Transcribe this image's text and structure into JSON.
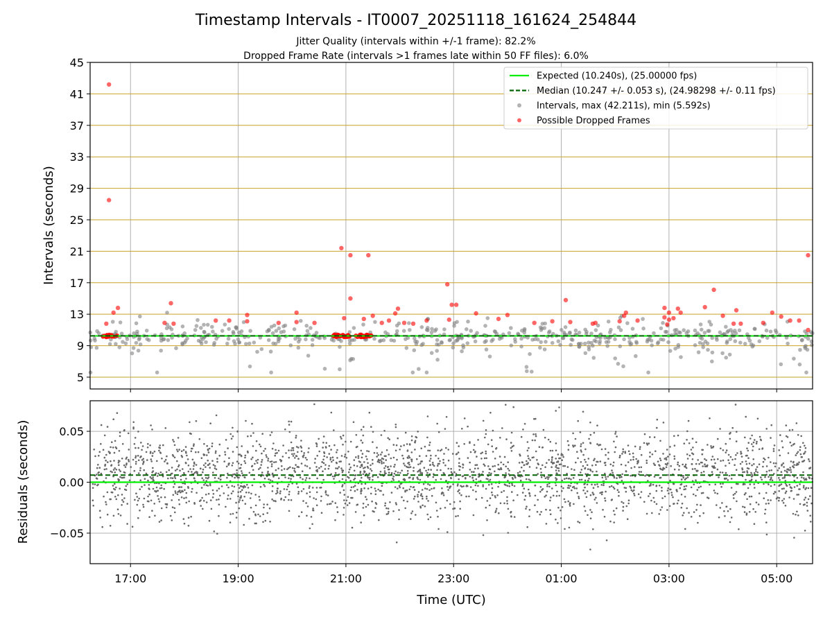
{
  "title": "Timestamp Intervals - IT0007_20251118_161624_254844",
  "subtitle_1": "Jitter Quality (intervals within +/-1 frame): 82.2%",
  "subtitle_2": "Dropped Frame Rate (intervals >1 frames late within 50 FF files): 6.0%",
  "colors": {
    "expected": "#00ee00",
    "median": "#006400",
    "intervals": "#808080",
    "dropped": "#ff0000",
    "hgrid_top": "#c9a227",
    "grid": "#b0b0b0"
  },
  "chart_data": [
    {
      "type": "scatter",
      "panel": "intervals",
      "ylabel": "Intervals (seconds)",
      "xlim": [
        "16:15",
        "05:40"
      ],
      "ylim": [
        3.5,
        45
      ],
      "yticks": [
        5,
        9,
        13,
        17,
        21,
        25,
        29,
        33,
        37,
        41,
        45
      ],
      "grid": "on",
      "legend_placement": "top-right",
      "legend": [
        {
          "kind": "line",
          "style": "solid",
          "color": "#00ee00",
          "label": "Expected (10.240s), (25.00000 fps)"
        },
        {
          "kind": "line",
          "style": "dashed",
          "color": "#006400",
          "label": "Median (10.247 +/- 0.053 s), (24.98298 +/- 0.11 fps)"
        },
        {
          "kind": "marker",
          "color": "#808080",
          "label": "Intervals, max (42.211s), min (5.592s)"
        },
        {
          "kind": "marker",
          "color": "#ff0000",
          "label": "Possible Dropped Frames"
        }
      ],
      "expected_interval": 10.24,
      "median_interval": 10.247,
      "series": [
        {
          "name": "Possible Dropped Frames",
          "points": [
            [
              "16:36",
              42.2
            ],
            [
              "16:36",
              27.5
            ],
            [
              "16:33",
              11.8
            ],
            [
              "16:41",
              13.2
            ],
            [
              "16:46",
              13.8
            ],
            [
              "17:45",
              14.4
            ],
            [
              "17:38",
              11.9
            ],
            [
              "17:48",
              11.8
            ],
            [
              "18:35",
              12.2
            ],
            [
              "18:50",
              12.2
            ],
            [
              "19:10",
              12.9
            ],
            [
              "19:10",
              12.1
            ],
            [
              "19:45",
              11.9
            ],
            [
              "20:05",
              13.2
            ],
            [
              "20:05",
              12.0
            ],
            [
              "20:25",
              11.9
            ],
            [
              "20:55",
              21.4
            ],
            [
              "21:05",
              20.5
            ],
            [
              "21:05",
              15.0
            ],
            [
              "21:25",
              20.5
            ],
            [
              "20:58",
              12.5
            ],
            [
              "21:20",
              12.4
            ],
            [
              "21:30",
              12.8
            ],
            [
              "21:40",
              11.9
            ],
            [
              "21:48",
              12.2
            ],
            [
              "21:55",
              13.1
            ],
            [
              "21:58",
              13.7
            ],
            [
              "22:05",
              11.9
            ],
            [
              "22:15",
              11.8
            ],
            [
              "22:30",
              12.2
            ],
            [
              "22:53",
              16.8
            ],
            [
              "22:58",
              14.2
            ],
            [
              "23:03",
              14.2
            ],
            [
              "22:55",
              12.3
            ],
            [
              "23:25",
              13.1
            ],
            [
              "23:50",
              12.4
            ],
            [
              "24:00",
              12.9
            ],
            [
              "24:30",
              11.9
            ],
            [
              "24:50",
              12.1
            ],
            [
              "25:05",
              14.8
            ],
            [
              "25:10",
              12.0
            ],
            [
              "25:35",
              11.8
            ],
            [
              "25:38",
              11.9
            ],
            [
              "26:05",
              12.1
            ],
            [
              "26:10",
              12.8
            ],
            [
              "26:12",
              13.2
            ],
            [
              "26:25",
              12.2
            ],
            [
              "26:55",
              12.6
            ],
            [
              "27:00",
              12.3
            ],
            [
              "26:58",
              11.7
            ],
            [
              "26:55",
              13.8
            ],
            [
              "27:00",
              13.2
            ],
            [
              "27:10",
              13.7
            ],
            [
              "27:13",
              13.2
            ],
            [
              "27:05",
              12.5
            ],
            [
              "27:40",
              13.9
            ],
            [
              "27:50",
              16.1
            ],
            [
              "28:00",
              12.8
            ],
            [
              "28:15",
              13.5
            ],
            [
              "28:12",
              11.8
            ],
            [
              "28:20",
              11.8
            ],
            [
              "28:45",
              11.9
            ],
            [
              "28:55",
              13.2
            ],
            [
              "29:05",
              12.7
            ],
            [
              "29:15",
              12.2
            ],
            [
              "29:25",
              12.2
            ],
            [
              "29:35",
              20.5
            ],
            [
              "29:35",
              11.0
            ]
          ]
        }
      ]
    },
    {
      "type": "scatter",
      "panel": "residuals",
      "xlabel": "Time (UTC)",
      "ylabel": "Residuals (seconds)",
      "xticks": [
        "17:00",
        "19:00",
        "21:00",
        "23:00",
        "01:00",
        "03:00",
        "05:00"
      ],
      "ylim": [
        -0.08,
        0.08
      ],
      "yticks": [
        -0.05,
        0.0,
        0.05
      ],
      "ytick_labels": [
        "−0.05",
        "0.00",
        "0.05"
      ],
      "grid": "on",
      "expected_residual": 0.0,
      "median_residual": 0.007,
      "noise_std": 0.022
    }
  ]
}
